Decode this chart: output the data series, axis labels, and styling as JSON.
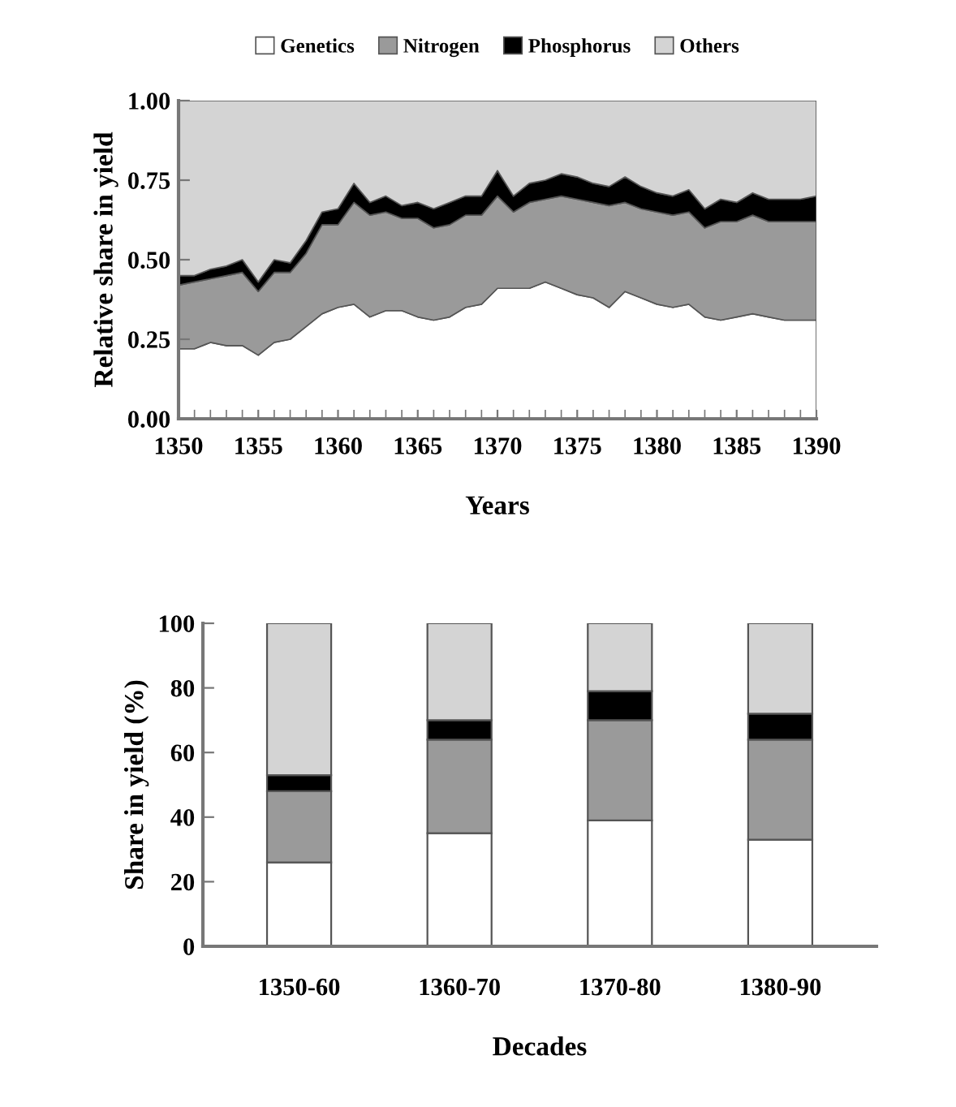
{
  "chart_data": [
    {
      "type": "area",
      "stacked": true,
      "xlabel": "Years",
      "ylabel": "Relative share in yield",
      "legend": "top",
      "grid": false,
      "x": [
        1350,
        1351,
        1352,
        1353,
        1354,
        1355,
        1356,
        1357,
        1358,
        1359,
        1360,
        1361,
        1362,
        1363,
        1364,
        1365,
        1366,
        1367,
        1368,
        1369,
        1370,
        1371,
        1372,
        1373,
        1374,
        1375,
        1376,
        1377,
        1378,
        1379,
        1380,
        1381,
        1382,
        1383,
        1384,
        1385,
        1386,
        1387,
        1388,
        1389,
        1390
      ],
      "xlim": [
        1350,
        1390
      ],
      "xticks": [
        1350,
        1355,
        1360,
        1365,
        1370,
        1375,
        1380,
        1385,
        1390
      ],
      "ylim": [
        0,
        1
      ],
      "yticks": [
        {
          "value": 0,
          "label": "0.00"
        },
        {
          "value": 0.25,
          "label": "0.25"
        },
        {
          "value": 0.5,
          "label": "0.50"
        },
        {
          "value": 0.75,
          "label": "0.75"
        },
        {
          "value": 1,
          "label": "1.00"
        }
      ],
      "series": [
        {
          "name": "Genetics",
          "color": "#ffffff",
          "values": [
            0.22,
            0.22,
            0.24,
            0.23,
            0.23,
            0.2,
            0.24,
            0.25,
            0.29,
            0.33,
            0.35,
            0.36,
            0.32,
            0.34,
            0.34,
            0.32,
            0.31,
            0.32,
            0.35,
            0.36,
            0.41,
            0.41,
            0.41,
            0.43,
            0.41,
            0.39,
            0.38,
            0.35,
            0.4,
            0.38,
            0.36,
            0.35,
            0.36,
            0.32,
            0.31,
            0.32,
            0.33,
            0.32,
            0.31,
            0.31,
            0.31
          ]
        },
        {
          "name": "Nitrogen",
          "color": "#9a9a9a",
          "values": [
            0.2,
            0.21,
            0.2,
            0.22,
            0.23,
            0.2,
            0.22,
            0.21,
            0.23,
            0.28,
            0.26,
            0.32,
            0.32,
            0.31,
            0.29,
            0.31,
            0.29,
            0.29,
            0.29,
            0.28,
            0.29,
            0.24,
            0.27,
            0.26,
            0.29,
            0.3,
            0.3,
            0.32,
            0.28,
            0.28,
            0.29,
            0.29,
            0.29,
            0.28,
            0.31,
            0.3,
            0.31,
            0.3,
            0.31,
            0.31,
            0.31
          ]
        },
        {
          "name": "Phosphorus",
          "color": "#000000",
          "values": [
            0.03,
            0.02,
            0.03,
            0.03,
            0.04,
            0.03,
            0.04,
            0.03,
            0.04,
            0.04,
            0.05,
            0.06,
            0.04,
            0.05,
            0.04,
            0.05,
            0.06,
            0.07,
            0.06,
            0.06,
            0.08,
            0.05,
            0.06,
            0.06,
            0.07,
            0.07,
            0.06,
            0.06,
            0.08,
            0.07,
            0.06,
            0.06,
            0.07,
            0.06,
            0.07,
            0.06,
            0.07,
            0.07,
            0.07,
            0.07,
            0.08
          ]
        },
        {
          "name": "Others",
          "color": "#d4d4d4",
          "values": [
            0.55,
            0.55,
            0.53,
            0.52,
            0.5,
            0.57,
            0.5,
            0.51,
            0.44,
            0.35,
            0.34,
            0.26,
            0.32,
            0.3,
            0.33,
            0.32,
            0.34,
            0.32,
            0.3,
            0.3,
            0.22,
            0.3,
            0.26,
            0.25,
            0.23,
            0.24,
            0.26,
            0.27,
            0.24,
            0.27,
            0.29,
            0.3,
            0.28,
            0.34,
            0.31,
            0.32,
            0.29,
            0.31,
            0.31,
            0.31,
            0.3
          ]
        }
      ]
    },
    {
      "type": "bar",
      "stacked": true,
      "xlabel": "Decades",
      "ylabel": "Share in yield (%)",
      "grid": false,
      "categories": [
        "1350-60",
        "1360-70",
        "1370-80",
        "1380-90"
      ],
      "ylim": [
        0,
        100
      ],
      "yticks": [
        0,
        20,
        40,
        60,
        80,
        100
      ],
      "series": [
        {
          "color": "#ffffff",
          "values": [
            26,
            35,
            39,
            33
          ]
        },
        {
          "color": "#9a9a9a",
          "values": [
            22,
            29,
            31,
            31
          ]
        },
        {
          "color": "#000000",
          "values": [
            5,
            6,
            9,
            8
          ]
        },
        {
          "color": "#d4d4d4",
          "values": [
            47,
            30,
            21,
            28
          ]
        }
      ]
    }
  ]
}
